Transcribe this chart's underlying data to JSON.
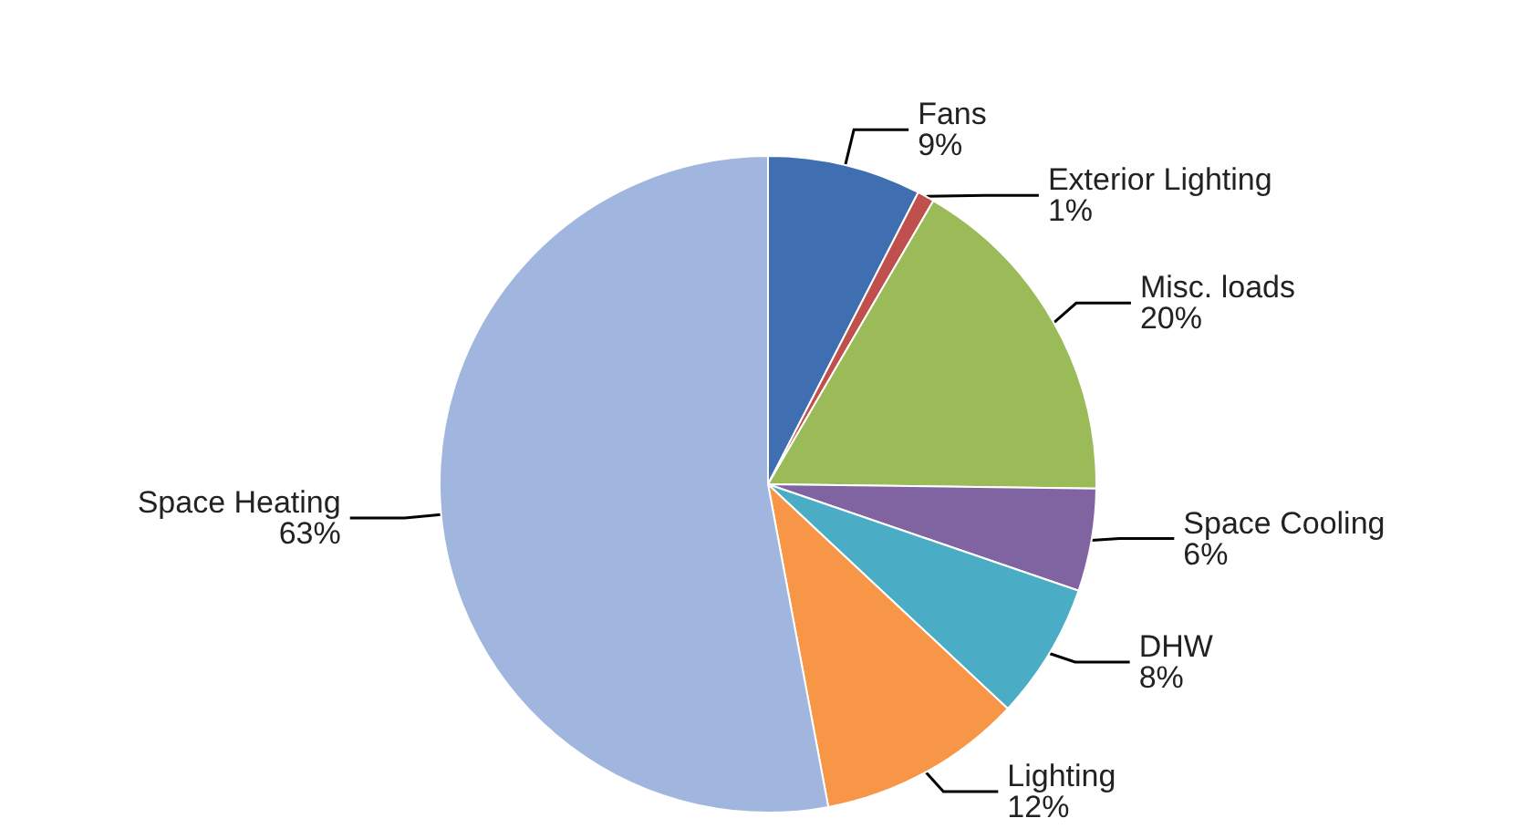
{
  "chart_data": {
    "type": "pie",
    "categories": [
      "Fans",
      "Exterior Lighting",
      "Misc. loads",
      "Space Cooling",
      "DHW",
      "Lighting",
      "Space Heating"
    ],
    "values": [
      9,
      1,
      20,
      6,
      8,
      12,
      63
    ],
    "value_labels": [
      "9%",
      "1%",
      "20%",
      "6%",
      "8%",
      "12%",
      "63%"
    ],
    "colors": [
      "#3f6fb0",
      "#c0504d",
      "#9bbb59",
      "#8064a2",
      "#4bacc6",
      "#f79646",
      "#a0b6de"
    ],
    "legend": false
  }
}
